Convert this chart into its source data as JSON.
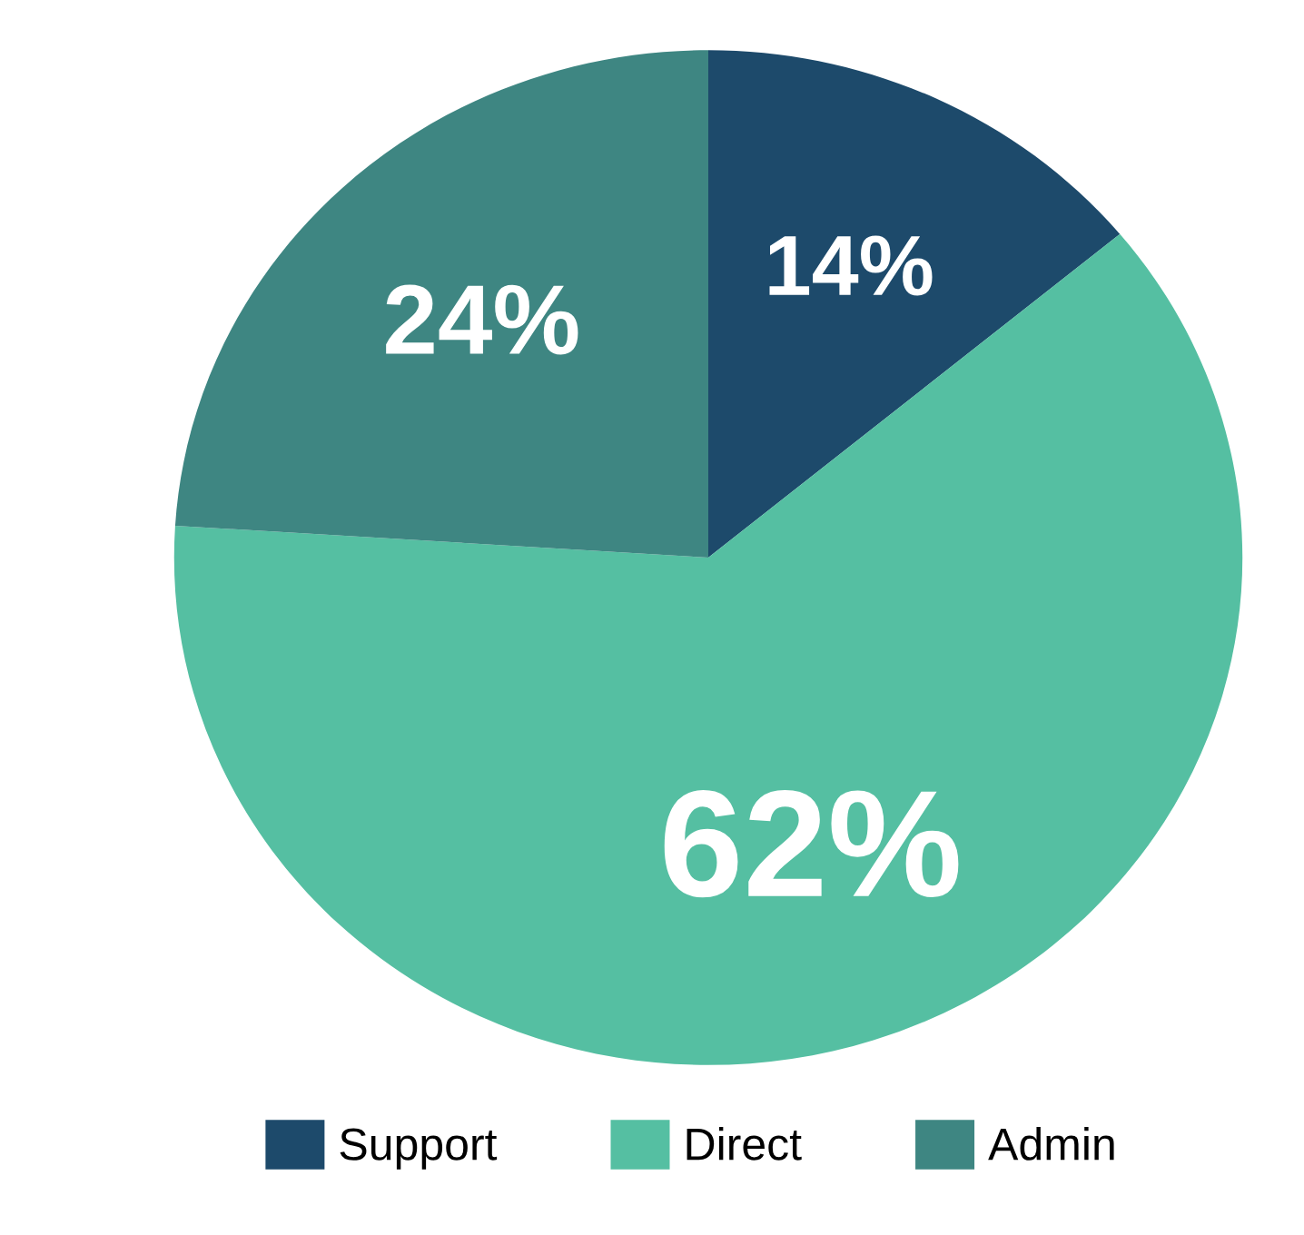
{
  "chart_data": {
    "type": "pie",
    "categories": [
      "Support",
      "Direct",
      "Admin"
    ],
    "values": [
      14,
      62,
      24
    ],
    "colors": [
      "#1d4a6b",
      "#55bfa2",
      "#3e8682"
    ],
    "value_labels": [
      "14%",
      "62%",
      "24%"
    ],
    "legend": "bottom"
  }
}
